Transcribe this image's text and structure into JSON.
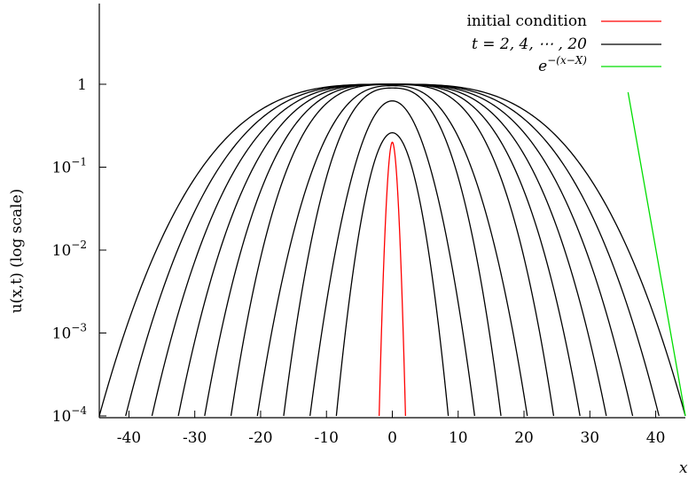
{
  "chart_data": {
    "type": "line",
    "xlabel": "x",
    "ylabel": "u(x,t) (log scale)",
    "log_y": true,
    "xlim": [
      -44.5,
      44.5
    ],
    "ylim": [
      0.0001,
      6
    ],
    "x_ticks": [
      {
        "value": -40,
        "label": "-40"
      },
      {
        "value": -30,
        "label": "-30"
      },
      {
        "value": -20,
        "label": "-20"
      },
      {
        "value": -10,
        "label": "-10"
      },
      {
        "value": 0,
        "label": "0"
      },
      {
        "value": 10,
        "label": "10"
      },
      {
        "value": 20,
        "label": "20"
      },
      {
        "value": 30,
        "label": "30"
      },
      {
        "value": 40,
        "label": "40"
      }
    ],
    "y_ticks": [
      {
        "value": 1,
        "base": "1",
        "exp": ""
      },
      {
        "value": 0.1,
        "base": "10",
        "exp": "−1"
      },
      {
        "value": 0.01,
        "base": "10",
        "exp": "−2"
      },
      {
        "value": 0.001,
        "base": "10",
        "exp": "−3"
      },
      {
        "value": 0.0001,
        "base": "10",
        "exp": "−4"
      }
    ],
    "legend": {
      "position": "top-right",
      "entries": [
        {
          "name": "initial condition",
          "color": "#ff0000"
        },
        {
          "name": "t = 2, 4, ⋯ , 20",
          "color": "#000000"
        },
        {
          "name": "e^{−(x−X)}",
          "color": "#00dd00"
        }
      ]
    },
    "initial_condition": {
      "color": "#ff0000",
      "peak": 0.2,
      "x_at_bottom": [
        -2,
        2
      ]
    },
    "series": [
      {
        "t": 2,
        "peak": 0.26,
        "x_at_bottom": [
          -8.5,
          8.5
        ]
      },
      {
        "t": 4,
        "peak": 0.63,
        "x_at_bottom": [
          -12.5,
          12.5
        ]
      },
      {
        "t": 6,
        "peak": 0.9,
        "x_at_bottom": [
          -16.5,
          16.5
        ]
      },
      {
        "t": 8,
        "peak": 0.96,
        "x_at_bottom": [
          -20.5,
          20.5
        ]
      },
      {
        "t": 10,
        "peak": 0.99,
        "x_at_bottom": [
          -24.5,
          24.5
        ]
      },
      {
        "t": 12,
        "peak": 1.0,
        "x_at_bottom": [
          -28.5,
          28.5
        ]
      },
      {
        "t": 14,
        "peak": 1.0,
        "x_at_bottom": [
          -32.5,
          32.5
        ]
      },
      {
        "t": 16,
        "peak": 1.0,
        "x_at_bottom": [
          -36.5,
          36.5
        ]
      },
      {
        "t": 18,
        "peak": 1.0,
        "x_at_bottom": [
          -40.5,
          40.5
        ]
      },
      {
        "t": 20,
        "peak": 1.0,
        "x_at_bottom": [
          -44.5,
          44.5
        ]
      }
    ],
    "series_color": "#000000",
    "reference_line": {
      "color": "#00dd00",
      "points": [
        [
          35.8,
          0.8
        ],
        [
          44.5,
          0.0001
        ]
      ]
    }
  }
}
